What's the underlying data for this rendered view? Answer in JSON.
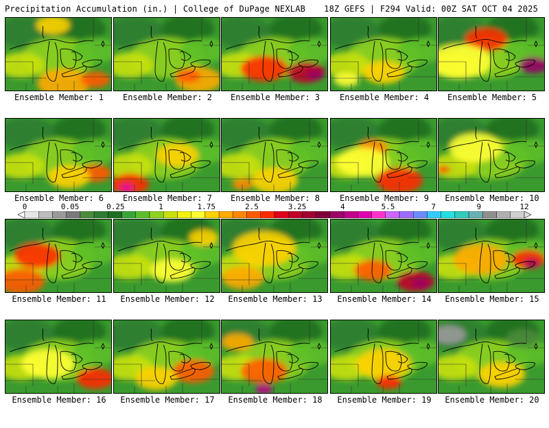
{
  "header": {
    "left": "Precipitation Accumulation (in.) | College of DuPage NEXLAB",
    "right": "18Z GEFS | F294 Valid: 00Z SAT OCT 04 2025"
  },
  "colorbar": {
    "labels": [
      "0",
      "0.05",
      "0.25",
      "1",
      "1.75",
      "2.5",
      "3.25",
      "4",
      "5.5",
      "7",
      "9",
      "12"
    ],
    "colors": [
      "#e6e6e6",
      "#bdbdbd",
      "#9a9a9a",
      "#7a7a7a",
      "#4b8b3b",
      "#2e7d32",
      "#1f6f1f",
      "#36a636",
      "#5cbf2a",
      "#8fd11e",
      "#c8e00e",
      "#f2f20c",
      "#ffff33",
      "#ffd200",
      "#ffaa00",
      "#ff8800",
      "#ff5a00",
      "#ff2a00",
      "#e0001a",
      "#c00028",
      "#a00030",
      "#800036",
      "#9a0066",
      "#c0008a",
      "#e000b0",
      "#ff33cc",
      "#cc66ff",
      "#9d6bff",
      "#6b8cff",
      "#33ccff",
      "#22e0e0",
      "#33ccbb",
      "#66b2b2",
      "#909090",
      "#b0b0b0",
      "#cfcfcf"
    ]
  },
  "members": [
    {
      "label": "Ensemble Member: 1"
    },
    {
      "label": "Ensemble Member: 2"
    },
    {
      "label": "Ensemble Member: 3"
    },
    {
      "label": "Ensemble Member: 4"
    },
    {
      "label": "Ensemble Member: 5"
    },
    {
      "label": "Ensemble Member: 6"
    },
    {
      "label": "Ensemble Member: 7"
    },
    {
      "label": "Ensemble Member: 8"
    },
    {
      "label": "Ensemble Member: 9"
    },
    {
      "label": "Ensemble Member: 10"
    },
    {
      "label": "Ensemble Member: 11"
    },
    {
      "label": "Ensemble Member: 12"
    },
    {
      "label": "Ensemble Member: 13"
    },
    {
      "label": "Ensemble Member: 14"
    },
    {
      "label": "Ensemble Member: 15"
    },
    {
      "label": "Ensemble Member: 16"
    },
    {
      "label": "Ensemble Member: 17"
    },
    {
      "label": "Ensemble Member: 18"
    },
    {
      "label": "Ensemble Member: 19"
    },
    {
      "label": "Ensemble Member: 20"
    }
  ]
}
